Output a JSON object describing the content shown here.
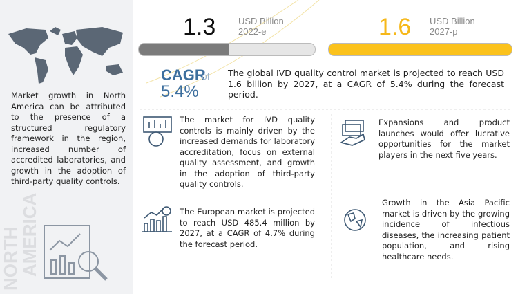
{
  "left_panel": {
    "description": "Market growth in North America can be attributed to the presence of a structured regulatory framework in the region, increased number of accredited laboratories, and growth in the adoption of third-party quality controls.",
    "region": [
      "NORTH",
      "AMERICA"
    ]
  },
  "market_size": [
    {
      "value": 1.3,
      "unit": "USD Billion",
      "year": "2022-e"
    },
    {
      "value": 1.6,
      "unit": "USD Billion",
      "year": "2027-p"
    }
  ],
  "cagr": {
    "label": "CAGR",
    "connector": "of",
    "value": "5.4%",
    "summary": "The global IVD quality control market is projected to reach USD 1.6 billion by 2027, at a CAGR of 5.4% during the forecast period."
  },
  "highlights": [
    "The market for IVD quality controls is mainly driven by the increased demands for laboratory accreditation, focus on external quality assessment, and growth in the adoption of third-party quality controls.",
    "Expansions and product launches would offer lucrative opportunities for the market players in the next five years.",
    "The European market is projected to reach USD 485.4 million by 2027, at a CAGR of 4.7% during the forecast period.",
    "Growth in the Asia Pacific market is driven by the growing incidence of infectious diseases, the increasing patient population, and rising healthcare needs."
  ]
}
